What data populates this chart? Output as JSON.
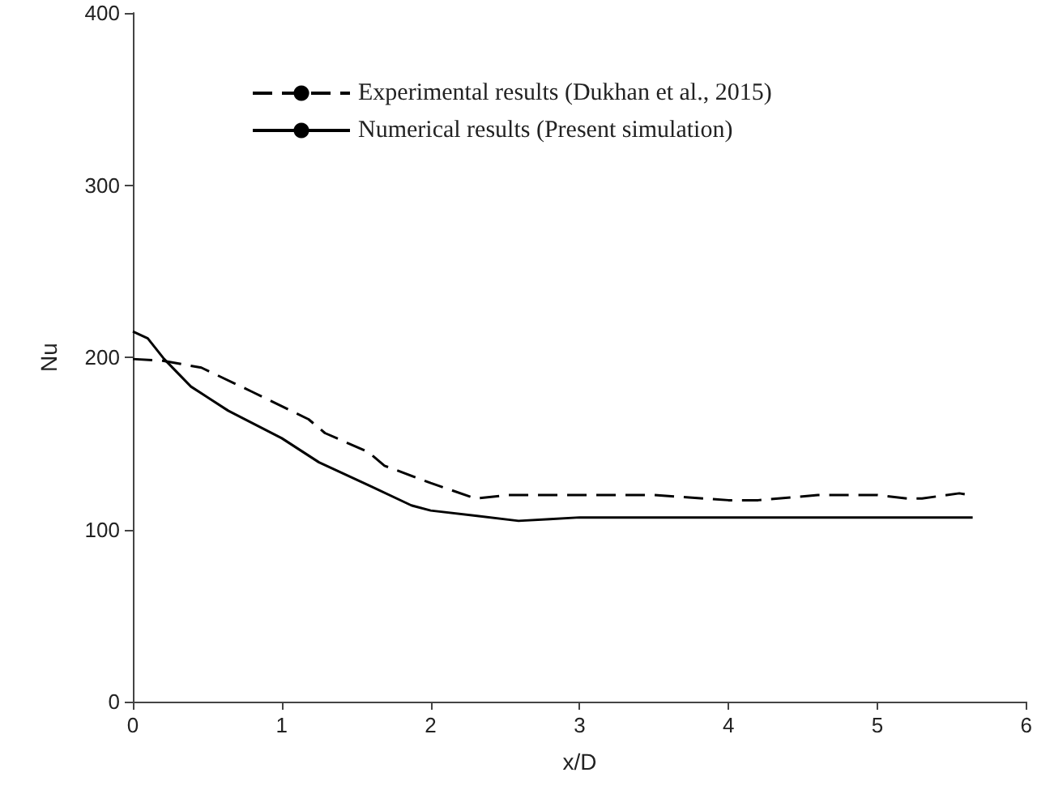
{
  "chart_data": {
    "type": "line",
    "xlabel": "x/D",
    "ylabel": "Nu",
    "xlim": [
      0,
      6
    ],
    "xticks": [
      0,
      1,
      2,
      3,
      4,
      5,
      6
    ],
    "ylim": [
      0,
      400
    ],
    "yticks": [
      0,
      100,
      200,
      300,
      400
    ],
    "grid": false,
    "legend": "top",
    "marker": "none",
    "series": [
      {
        "name": "Experimental results (Dukhan et al., 2015)",
        "color": "#000000",
        "line_style": "dashed",
        "x": [
          0,
          0.2,
          0.46,
          0.8,
          1.18,
          1.29,
          1.58,
          1.69,
          2.0,
          2.3,
          2.52,
          3.0,
          3.5,
          4.0,
          4.2,
          4.6,
          5.0,
          5.2,
          5.3,
          5.55,
          5.62
        ],
        "values": [
          199,
          198,
          194,
          180,
          164,
          156,
          145,
          137,
          127,
          118,
          120,
          120,
          120,
          117,
          117,
          120,
          120,
          118,
          118,
          121,
          120
        ]
      },
      {
        "name": "Numerical results (Present simulation)",
        "color": "#000000",
        "line_style": "solid",
        "x": [
          0,
          0.1,
          0.21,
          0.39,
          0.64,
          1.0,
          1.25,
          1.6,
          1.87,
          2.0,
          2.3,
          2.59,
          2.8,
          3.0,
          3.5,
          4.0,
          5.0,
          5.64
        ],
        "values": [
          215,
          211,
          199,
          183,
          169,
          153,
          139,
          125,
          114,
          111,
          108,
          105,
          106,
          107,
          107,
          107,
          107,
          107
        ]
      }
    ]
  }
}
